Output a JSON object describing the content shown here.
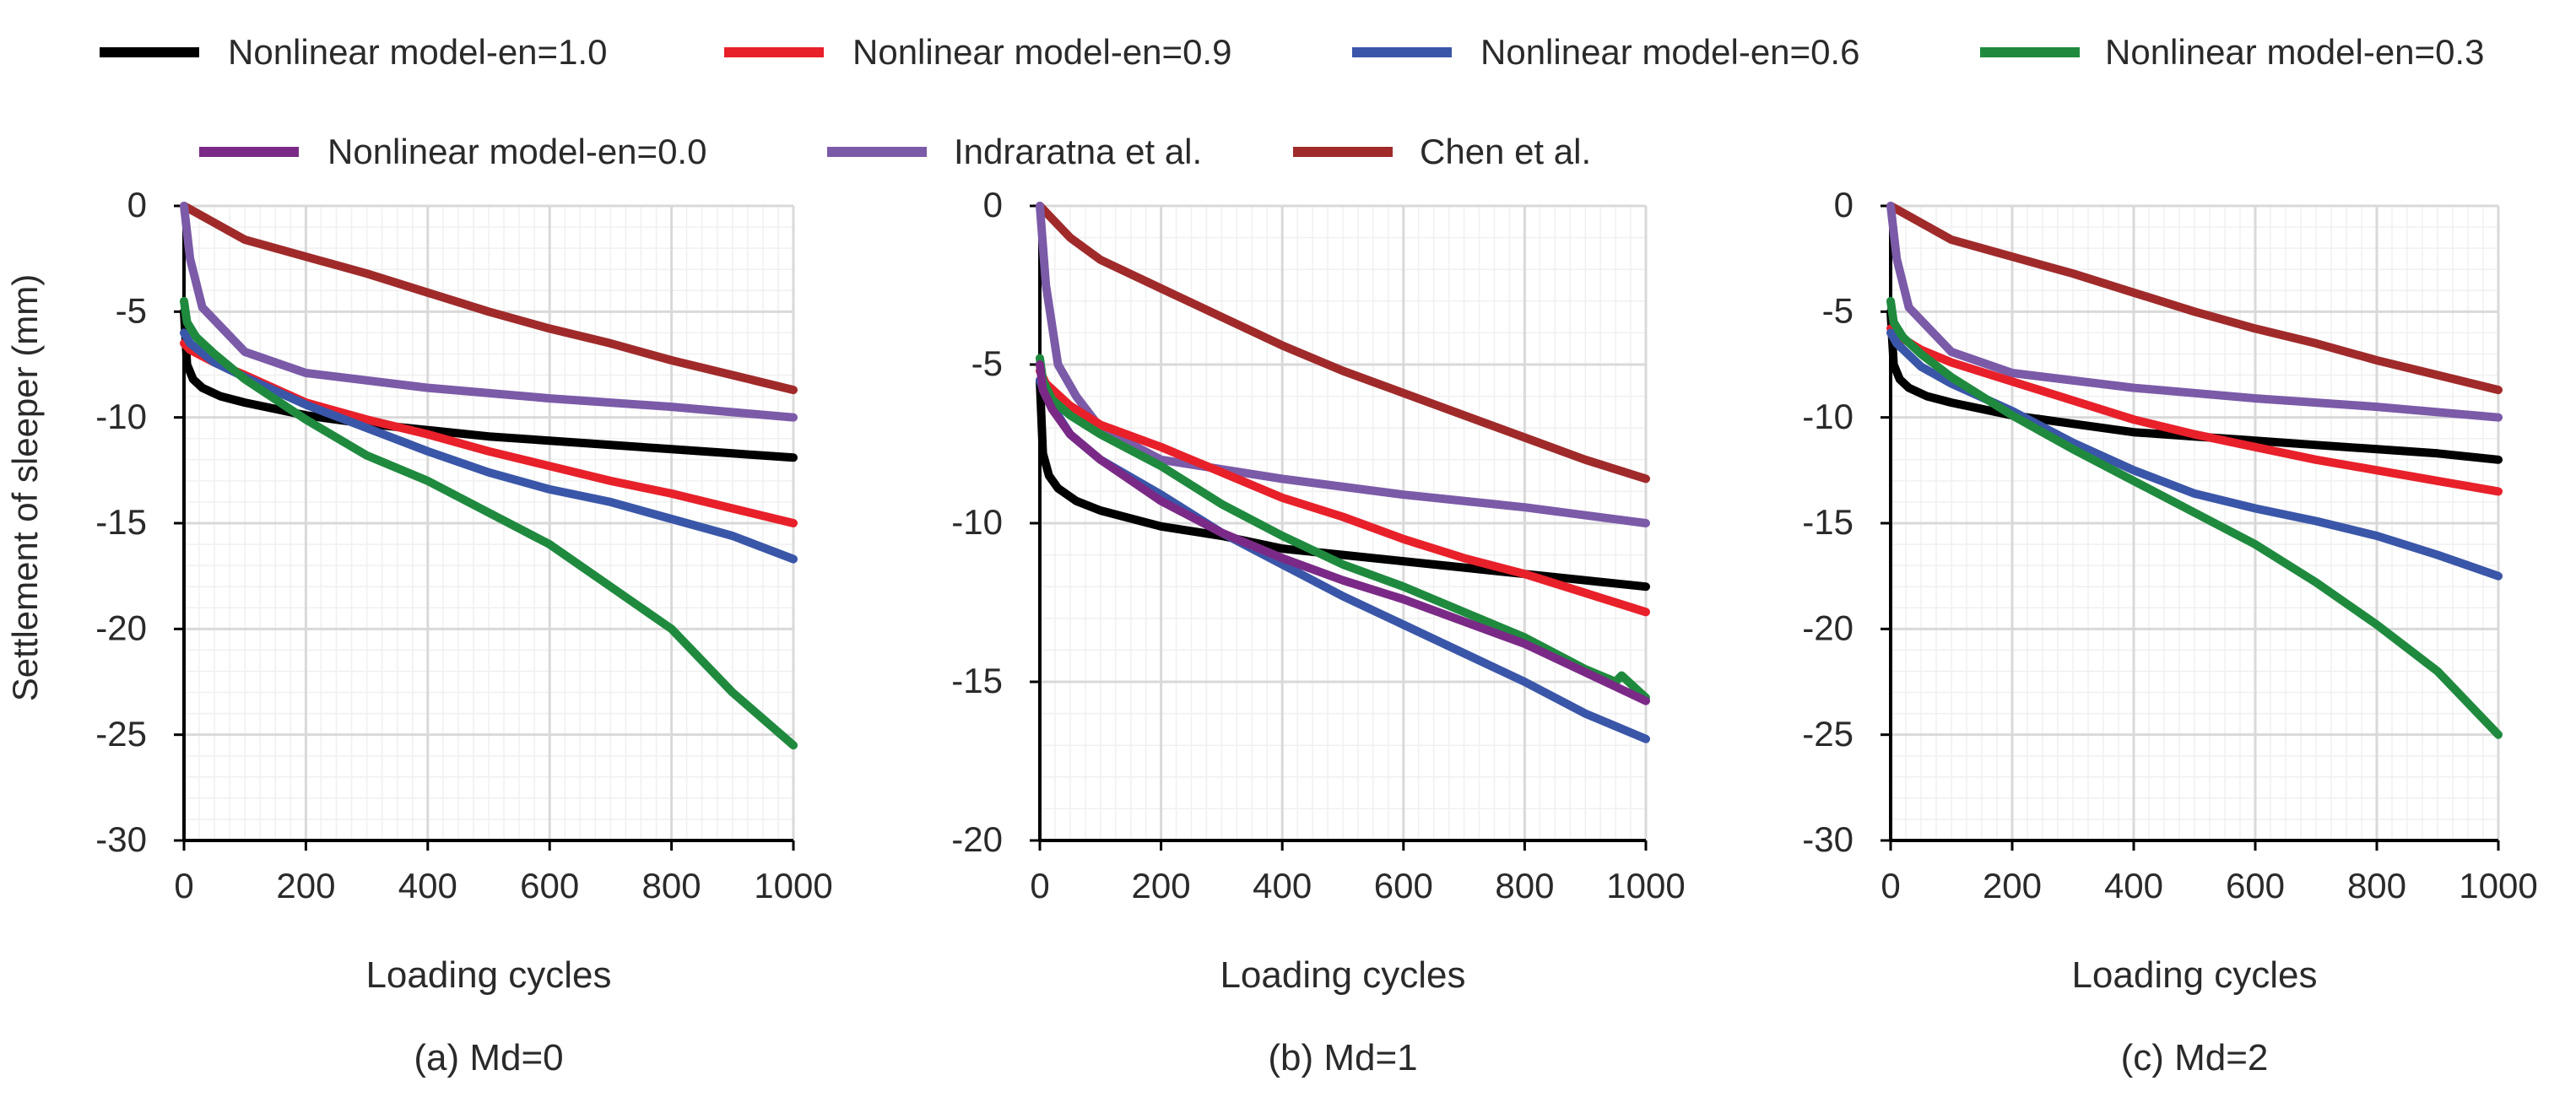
{
  "figure": {
    "ylabel": "Settlement of sleeper (mm)"
  },
  "legend": {
    "entries": [
      {
        "name": "Nonlinear model-en=1.0",
        "color": "#000000"
      },
      {
        "name": "Nonlinear model-en=0.9",
        "color": "#e8202a"
      },
      {
        "name": "Nonlinear model-en=0.6",
        "color": "#3a56a8"
      },
      {
        "name": "Nonlinear model-en=0.3",
        "color": "#1f8a3e"
      },
      {
        "name": "Nonlinear model-en=0.0",
        "color": "#7a2a86"
      },
      {
        "name": "Indraratna et al.",
        "color": "#7b5aa8"
      },
      {
        "name": "Chen et al.",
        "color": "#a02a2a"
      }
    ]
  },
  "chart_data": [
    {
      "type": "line",
      "title": "(a) Md=0",
      "xlabel": "Loading cycles",
      "ylabel": "Settlement of sleeper (mm)",
      "xlim": [
        0,
        1000
      ],
      "ylim": [
        -30,
        0
      ],
      "xticks": [
        0,
        200,
        400,
        600,
        800,
        1000
      ],
      "yticks": [
        0,
        -5,
        -10,
        -15,
        -20,
        -25,
        -30
      ],
      "series": [
        {
          "name": "Chen et al.",
          "color": "#a02a2a",
          "x": [
            0,
            100,
            200,
            300,
            400,
            500,
            600,
            700,
            800,
            900,
            1000
          ],
          "y": [
            0,
            -1.6,
            -2.4,
            -3.2,
            -4.1,
            -5.0,
            -5.8,
            -6.5,
            -7.3,
            -8.0,
            -8.7
          ]
        },
        {
          "name": "Indraratna et al.",
          "color": "#7b5aa8",
          "x": [
            0,
            10,
            30,
            100,
            200,
            400,
            600,
            800,
            1000
          ],
          "y": [
            0,
            -2.5,
            -4.8,
            -6.9,
            -7.9,
            -8.6,
            -9.1,
            -9.5,
            -10.0
          ]
        },
        {
          "name": "Nonlinear model-en=1.0",
          "color": "#000000",
          "x": [
            0,
            5,
            15,
            30,
            60,
            100,
            200,
            300,
            400,
            500,
            600,
            700,
            800,
            900,
            1000
          ],
          "y": [
            -5.0,
            -7.5,
            -8.2,
            -8.6,
            -9.0,
            -9.3,
            -9.9,
            -10.3,
            -10.6,
            -10.9,
            -11.1,
            -11.3,
            -11.5,
            -11.7,
            -11.9
          ]
        },
        {
          "name": "Nonlinear model-en=0.9",
          "color": "#e8202a",
          "x": [
            0,
            10,
            50,
            100,
            200,
            300,
            400,
            500,
            600,
            700,
            800,
            900,
            1000
          ],
          "y": [
            -6.5,
            -6.8,
            -7.4,
            -8.0,
            -9.3,
            -10.1,
            -10.8,
            -11.6,
            -12.3,
            -13.0,
            -13.6,
            -14.3,
            -15.0
          ]
        },
        {
          "name": "Nonlinear model-en=0.6",
          "color": "#3a56a8",
          "x": [
            0,
            10,
            50,
            100,
            200,
            300,
            400,
            500,
            600,
            700,
            800,
            900,
            1000
          ],
          "y": [
            -6.0,
            -6.5,
            -7.4,
            -8.1,
            -9.4,
            -10.5,
            -11.6,
            -12.6,
            -13.4,
            -14.0,
            -14.8,
            -15.6,
            -16.7
          ]
        },
        {
          "name": "Nonlinear model-en=0.3",
          "color": "#1f8a3e",
          "x": [
            0,
            5,
            20,
            50,
            100,
            200,
            300,
            400,
            500,
            600,
            700,
            800,
            900,
            1000
          ],
          "y": [
            -4.5,
            -5.5,
            -6.2,
            -7.0,
            -8.2,
            -10.1,
            -11.8,
            -13.0,
            -14.5,
            -16.0,
            -18.0,
            -20.0,
            -23.0,
            -25.5
          ]
        }
      ]
    },
    {
      "type": "line",
      "title": "(b) Md=1",
      "xlabel": "Loading cycles",
      "ylabel": "",
      "xlim": [
        0,
        1000
      ],
      "ylim": [
        -20,
        0
      ],
      "xticks": [
        0,
        200,
        400,
        600,
        800,
        1000
      ],
      "yticks": [
        0,
        -5,
        -10,
        -15,
        -20
      ],
      "series": [
        {
          "name": "Chen et al.",
          "color": "#a02a2a",
          "x": [
            0,
            50,
            100,
            200,
            300,
            400,
            500,
            600,
            700,
            800,
            900,
            1000
          ],
          "y": [
            0,
            -1.0,
            -1.7,
            -2.6,
            -3.5,
            -4.4,
            -5.2,
            -5.9,
            -6.6,
            -7.3,
            -8.0,
            -8.6
          ]
        },
        {
          "name": "Indraratna et al.",
          "color": "#7b5aa8",
          "x": [
            0,
            10,
            30,
            60,
            100,
            200,
            400,
            600,
            800,
            1000
          ],
          "y": [
            0,
            -2.5,
            -5.0,
            -6.0,
            -7.0,
            -8.0,
            -8.6,
            -9.1,
            -9.5,
            -10.0
          ]
        },
        {
          "name": "Nonlinear model-en=1.0",
          "color": "#000000",
          "x": [
            0,
            5,
            15,
            30,
            60,
            100,
            200,
            300,
            400,
            500,
            600,
            700,
            800,
            900,
            1000
          ],
          "y": [
            -5.5,
            -7.8,
            -8.5,
            -8.9,
            -9.3,
            -9.6,
            -10.1,
            -10.4,
            -10.8,
            -11.0,
            -11.2,
            -11.4,
            -11.6,
            -11.8,
            -12.0
          ]
        },
        {
          "name": "Nonlinear model-en=0.9",
          "color": "#e8202a",
          "x": [
            0,
            10,
            50,
            100,
            200,
            300,
            400,
            500,
            600,
            700,
            800,
            900,
            1000
          ],
          "y": [
            -5.2,
            -5.6,
            -6.3,
            -6.9,
            -7.6,
            -8.4,
            -9.2,
            -9.8,
            -10.5,
            -11.1,
            -11.6,
            -12.2,
            -12.8
          ]
        },
        {
          "name": "Nonlinear model-en=0.6",
          "color": "#3a56a8",
          "x": [
            0,
            10,
            50,
            100,
            200,
            300,
            400,
            500,
            600,
            700,
            800,
            900,
            1000
          ],
          "y": [
            -5.5,
            -6.0,
            -7.2,
            -8.0,
            -9.1,
            -10.3,
            -11.3,
            -12.3,
            -13.2,
            -14.1,
            -15.0,
            -16.0,
            -16.8
          ]
        },
        {
          "name": "Nonlinear model-en=0.3",
          "color": "#1f8a3e",
          "x": [
            0,
            5,
            20,
            50,
            100,
            200,
            300,
            400,
            500,
            600,
            700,
            800,
            900,
            950,
            960,
            1000
          ],
          "y": [
            -4.8,
            -5.5,
            -6.1,
            -6.6,
            -7.2,
            -8.2,
            -9.4,
            -10.4,
            -11.3,
            -12.0,
            -12.8,
            -13.6,
            -14.6,
            -15.0,
            -14.8,
            -15.5
          ]
        },
        {
          "name": "Nonlinear model-en=0.0",
          "color": "#7a2a86",
          "x": [
            0,
            5,
            20,
            50,
            100,
            200,
            300,
            400,
            500,
            600,
            700,
            800,
            900,
            1000
          ],
          "y": [
            -5.0,
            -5.8,
            -6.4,
            -7.2,
            -8.0,
            -9.3,
            -10.3,
            -11.1,
            -11.8,
            -12.4,
            -13.1,
            -13.8,
            -14.7,
            -15.6
          ]
        }
      ]
    },
    {
      "type": "line",
      "title": "(c) Md=2",
      "xlabel": "Loading cycles",
      "ylabel": "",
      "xlim": [
        0,
        1000
      ],
      "ylim": [
        -30,
        0
      ],
      "xticks": [
        0,
        200,
        400,
        600,
        800,
        1000
      ],
      "yticks": [
        0,
        -5,
        -10,
        -15,
        -20,
        -25,
        -30
      ],
      "series": [
        {
          "name": "Chen et al.",
          "color": "#a02a2a",
          "x": [
            0,
            100,
            200,
            300,
            400,
            500,
            600,
            700,
            800,
            900,
            1000
          ],
          "y": [
            0,
            -1.6,
            -2.4,
            -3.2,
            -4.1,
            -5.0,
            -5.8,
            -6.5,
            -7.3,
            -8.0,
            -8.7
          ]
        },
        {
          "name": "Indraratna et al.",
          "color": "#7b5aa8",
          "x": [
            0,
            10,
            30,
            100,
            200,
            400,
            600,
            800,
            1000
          ],
          "y": [
            0,
            -2.5,
            -4.8,
            -6.9,
            -7.9,
            -8.6,
            -9.1,
            -9.5,
            -10.0
          ]
        },
        {
          "name": "Nonlinear model-en=1.0",
          "color": "#000000",
          "x": [
            0,
            5,
            15,
            30,
            60,
            100,
            200,
            300,
            400,
            500,
            600,
            700,
            800,
            900,
            1000
          ],
          "y": [
            -5.0,
            -7.5,
            -8.2,
            -8.6,
            -9.0,
            -9.3,
            -9.9,
            -10.3,
            -10.7,
            -10.9,
            -11.1,
            -11.3,
            -11.5,
            -11.7,
            -12.0
          ]
        },
        {
          "name": "Nonlinear model-en=0.9",
          "color": "#e8202a",
          "x": [
            0,
            10,
            50,
            100,
            200,
            300,
            400,
            500,
            600,
            700,
            800,
            900,
            1000
          ],
          "y": [
            -5.8,
            -6.1,
            -6.8,
            -7.4,
            -8.3,
            -9.2,
            -10.1,
            -10.8,
            -11.4,
            -12.0,
            -12.5,
            -13.0,
            -13.5
          ]
        },
        {
          "name": "Nonlinear model-en=0.6",
          "color": "#3a56a8",
          "x": [
            0,
            10,
            50,
            100,
            200,
            300,
            400,
            500,
            600,
            700,
            800,
            900,
            1000
          ],
          "y": [
            -6.0,
            -6.5,
            -7.6,
            -8.4,
            -9.7,
            -11.2,
            -12.5,
            -13.6,
            -14.3,
            -14.9,
            -15.6,
            -16.5,
            -17.5
          ]
        },
        {
          "name": "Nonlinear model-en=0.3",
          "color": "#1f8a3e",
          "x": [
            0,
            5,
            20,
            50,
            100,
            200,
            300,
            400,
            500,
            600,
            700,
            800,
            900,
            1000
          ],
          "y": [
            -4.5,
            -5.5,
            -6.2,
            -7.0,
            -8.1,
            -9.9,
            -11.5,
            -13.0,
            -14.5,
            -16.0,
            -17.8,
            -19.8,
            -22.0,
            -25.0
          ]
        }
      ]
    }
  ]
}
